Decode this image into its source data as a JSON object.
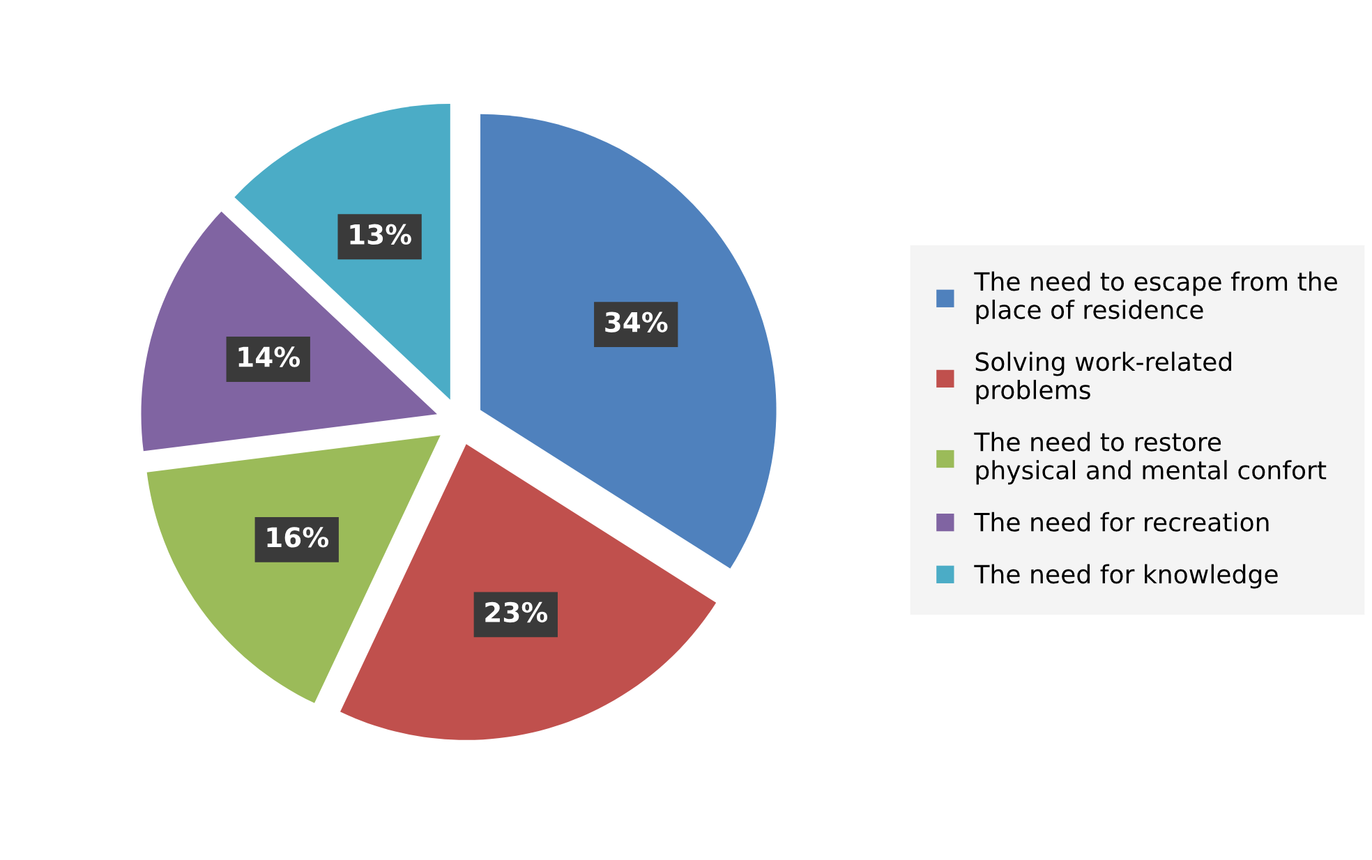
{
  "chart_data": {
    "type": "pie",
    "categories": [
      "The need to escape from the place of residence",
      "Solving work-related problems",
      "The need to restore physical and mental confort",
      "The need for recreation",
      "The need for knowledge"
    ],
    "values": [
      34,
      23,
      16,
      14,
      13
    ],
    "value_labels": [
      "34%",
      "23%",
      "16%",
      "14%",
      "13%"
    ],
    "colors": [
      "#4f81bd",
      "#c0504d",
      "#9bbb59",
      "#8064a2",
      "#4bacc6"
    ],
    "legend": "right"
  }
}
